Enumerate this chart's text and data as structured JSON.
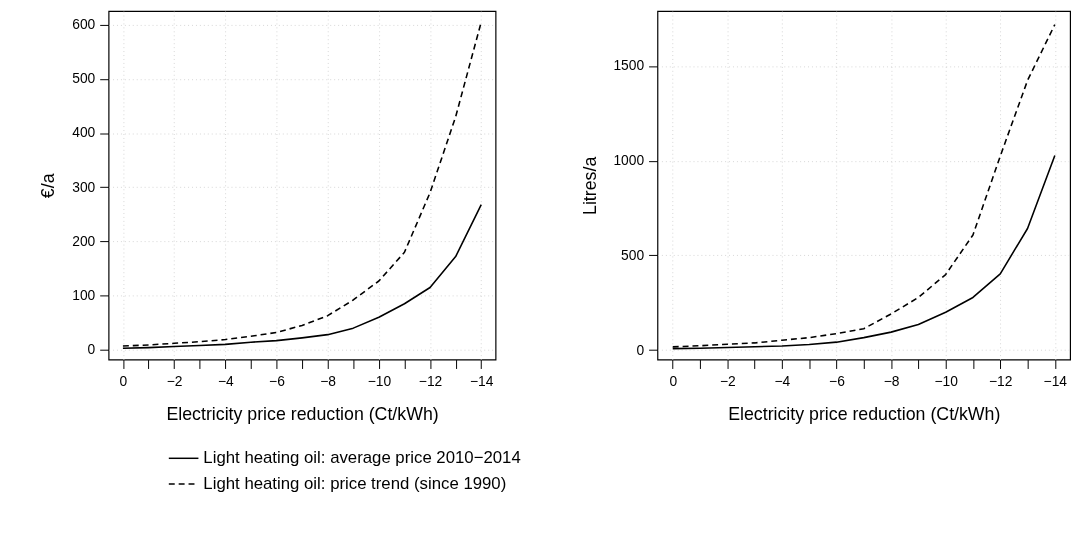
{
  "chart_data": [
    {
      "type": "line",
      "xlabel": "Electricity price reduction (Ct/kWh)",
      "ylabel": "€/a",
      "x": [
        0,
        -1,
        -2,
        -3,
        -4,
        -5,
        -6,
        -7,
        -8,
        -9,
        -10,
        -11,
        -12,
        -13,
        -14
      ],
      "series": [
        {
          "name": "Light heating oil: average price 2010−2014",
          "color": "#000000",
          "line_style": "solid",
          "values": [
            3,
            4,
            6,
            8,
            10,
            14,
            17,
            22,
            28,
            40,
            60,
            85,
            115,
            172,
            268
          ]
        },
        {
          "name": "Light heating oil: price trend (since 1990)",
          "color": "#000000",
          "line_style": "dashed",
          "values": [
            7,
            9,
            12,
            15,
            19,
            25,
            32,
            45,
            63,
            92,
            127,
            180,
            290,
            430,
            605
          ]
        }
      ],
      "xlim": [
        0.56,
        -14.56
      ],
      "ylim": [
        -18,
        625
      ],
      "xticks": [
        0,
        {
          "value": -1,
          "label": null
        },
        {
          "value": -2,
          "label": "−2"
        },
        {
          "value": -3,
          "label": null
        },
        {
          "value": -4,
          "label": "−4"
        },
        {
          "value": -5,
          "label": null
        },
        {
          "value": -6,
          "label": "−6"
        },
        {
          "value": -7,
          "label": null
        },
        {
          "value": -8,
          "label": "−8"
        },
        {
          "value": -9,
          "label": null
        },
        {
          "value": -10,
          "label": "−10"
        },
        {
          "value": -11,
          "label": null
        },
        {
          "value": -12,
          "label": "−12"
        },
        {
          "value": -13,
          "label": null
        },
        {
          "value": -14,
          "label": "−14"
        }
      ],
      "yticks": [
        0,
        100,
        200,
        300,
        400,
        500,
        600
      ],
      "grid": true,
      "legend": "bottom",
      "marker": "none"
    },
    {
      "type": "line",
      "xlabel": "Electricity price reduction (Ct/kWh)",
      "ylabel": "Litres/a",
      "x": [
        0,
        -1,
        -2,
        -3,
        -4,
        -5,
        -6,
        -7,
        -8,
        -9,
        -10,
        -11,
        -12,
        -13,
        -14
      ],
      "series": [
        {
          "name": "Light heating oil: average price 2010−2014",
          "color": "#000000",
          "line_style": "solid",
          "values": [
            8,
            10,
            14,
            18,
            22,
            30,
            42,
            66,
            95,
            135,
            200,
            278,
            403,
            642,
            1028
          ]
        },
        {
          "name": "Light heating oil: price trend (since 1990)",
          "color": "#000000",
          "line_style": "dashed",
          "values": [
            17,
            23,
            31,
            38,
            52,
            66,
            87,
            113,
            191,
            278,
            399,
            608,
            1024,
            1424,
            1719
          ]
        }
      ],
      "xlim": [
        0.56,
        -14.56
      ],
      "ylim": [
        -50,
        1790
      ],
      "xticks": [
        0,
        {
          "value": -1,
          "label": null
        },
        {
          "value": -2,
          "label": "−2"
        },
        {
          "value": -3,
          "label": null
        },
        {
          "value": -4,
          "label": "−4"
        },
        {
          "value": -5,
          "label": null
        },
        {
          "value": -6,
          "label": "−6"
        },
        {
          "value": -7,
          "label": null
        },
        {
          "value": -8,
          "label": "−8"
        },
        {
          "value": -9,
          "label": null
        },
        {
          "value": -10,
          "label": "−10"
        },
        {
          "value": -11,
          "label": null
        },
        {
          "value": -12,
          "label": "−12"
        },
        {
          "value": -13,
          "label": null
        },
        {
          "value": -14,
          "label": "−14"
        }
      ],
      "yticks": [
        0,
        500,
        1000,
        1500
      ],
      "grid": true,
      "legend": "bottom",
      "marker": "none"
    }
  ]
}
